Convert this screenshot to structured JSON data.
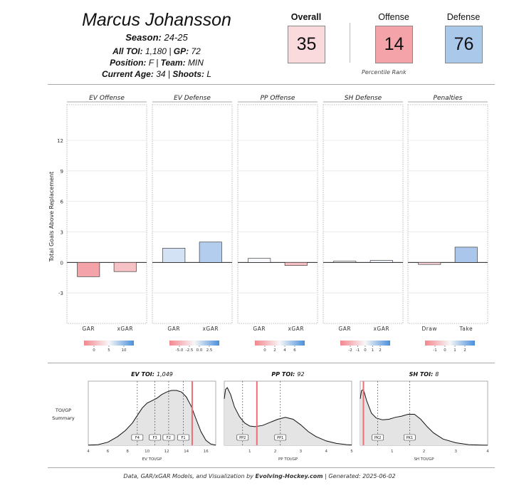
{
  "header": {
    "name": "Marcus Johansson",
    "season_label": "Season",
    "season": "24-25",
    "toi_label": "All TOI",
    "toi": "1,180",
    "gp_label": "GP",
    "gp": "72",
    "position_label": "Position",
    "position": "F",
    "team_label": "Team",
    "team": "MIN",
    "age_label": "Current Age",
    "age": "34",
    "shoots_label": "Shoots",
    "shoots": "L"
  },
  "ratings": {
    "overall_label": "Overall",
    "overall": "35",
    "offense_label": "Offense",
    "offense": "14",
    "defense_label": "Defense",
    "defense": "76",
    "percentile_label": "Percentile Rank",
    "colors": {
      "overall": "#fadadd",
      "offense": "#f4a3a8",
      "defense": "#a9c8ea"
    }
  },
  "chart_data": [
    {
      "type": "bar",
      "ylabel": "Total Goals Above Replacement",
      "ylim": [
        -6,
        15.5
      ],
      "yticks": [
        -3,
        0,
        3,
        6,
        9,
        12
      ],
      "grid": true,
      "facets": [
        {
          "title": "EV Offense",
          "categories": [
            "GAR",
            "xGAR"
          ],
          "values": [
            -1.4,
            -0.9
          ],
          "colors": [
            "#f4a3a8",
            "#f7c2c5"
          ],
          "legend": {
            "ticks": [
              "0",
              "5",
              "10"
            ]
          }
        },
        {
          "title": "EV Defense",
          "categories": [
            "GAR",
            "xGAR"
          ],
          "values": [
            1.4,
            2.0
          ],
          "colors": [
            "#d3e2f4",
            "#b3cdee"
          ],
          "legend": {
            "ticks": [
              "-5.0",
              "-2.5",
              "0.0",
              "2.5"
            ]
          }
        },
        {
          "title": "PP Offense",
          "categories": [
            "GAR",
            "xGAR"
          ],
          "values": [
            0.4,
            -0.3
          ],
          "colors": [
            "#f6f8fc",
            "#f7c2c5"
          ],
          "legend": {
            "ticks": [
              "0",
              "2",
              "4",
              "6"
            ]
          }
        },
        {
          "title": "SH Defense",
          "categories": [
            "GAR",
            "xGAR"
          ],
          "values": [
            0.12,
            0.2
          ],
          "colors": [
            "#f2f2f2",
            "#eef3fa"
          ],
          "legend": {
            "ticks": [
              "-2",
              "-1",
              "0",
              "1",
              "2"
            ]
          }
        },
        {
          "title": "Penalties",
          "categories": [
            "Draw",
            "Take"
          ],
          "values": [
            -0.2,
            1.5
          ],
          "colors": [
            "#f8d3d6",
            "#aac7eb"
          ],
          "legend": {
            "ticks": [
              "-1",
              "0",
              "1",
              "2"
            ]
          }
        }
      ]
    },
    {
      "type": "area",
      "title_label": "EV TOI",
      "title_value": "1,049",
      "xlabel": "EV TOI/GP",
      "xlim": [
        4,
        17
      ],
      "xticks": [
        4,
        6,
        8,
        10,
        12,
        14,
        16
      ],
      "x": [
        4,
        5,
        6,
        7,
        7.8,
        8.5,
        9,
        9.5,
        10,
        10.5,
        11,
        11.5,
        12,
        12.5,
        13,
        13.5,
        14,
        14.5,
        15,
        15.5,
        16,
        16.5,
        17
      ],
      "y": [
        0.002,
        0.01,
        0.05,
        0.14,
        0.24,
        0.36,
        0.48,
        0.6,
        0.68,
        0.72,
        0.76,
        0.82,
        0.86,
        0.885,
        0.885,
        0.86,
        0.78,
        0.63,
        0.42,
        0.22,
        0.08,
        0.02,
        0.004
      ],
      "percentile_lines": [
        {
          "label": "F4",
          "x": 9.0
        },
        {
          "label": "F3",
          "x": 10.8
        },
        {
          "label": "F2",
          "x": 12.2
        },
        {
          "label": "F1",
          "x": 13.7
        }
      ],
      "player_value": 14.6
    },
    {
      "type": "area",
      "title_label": "PP TOI",
      "title_value": "92",
      "xlabel": "PP TOI/GP",
      "xlim": [
        0,
        5
      ],
      "xticks": [
        1,
        2,
        3,
        4,
        5
      ],
      "x": [
        0,
        0.05,
        0.12,
        0.25,
        0.4,
        0.6,
        0.8,
        1.0,
        1.2,
        1.5,
        1.8,
        2.1,
        2.4,
        2.7,
        3.0,
        3.3,
        3.6,
        4.0,
        4.4,
        4.8,
        5.0
      ],
      "y": [
        0.75,
        0.9,
        0.93,
        0.82,
        0.62,
        0.46,
        0.36,
        0.31,
        0.3,
        0.32,
        0.37,
        0.42,
        0.45,
        0.42,
        0.33,
        0.22,
        0.14,
        0.07,
        0.03,
        0.01,
        0.005
      ],
      "percentile_lines": [
        {
          "label": "PP2",
          "x": 0.72
        },
        {
          "label": "PP1",
          "x": 2.2
        }
      ],
      "player_value": 1.28
    },
    {
      "type": "area",
      "title_label": "SH TOI",
      "title_value": "8",
      "xlabel": "SH TOI/GP",
      "xlim": [
        0,
        4
      ],
      "xticks": [
        1,
        2,
        3,
        4
      ],
      "x": [
        0,
        0.04,
        0.1,
        0.2,
        0.35,
        0.5,
        0.7,
        0.9,
        1.1,
        1.3,
        1.5,
        1.7,
        1.9,
        2.1,
        2.3,
        2.6,
        3.0,
        3.4,
        3.8,
        4.0
      ],
      "y": [
        0.75,
        0.88,
        0.9,
        0.72,
        0.52,
        0.44,
        0.41,
        0.42,
        0.45,
        0.47,
        0.5,
        0.5,
        0.42,
        0.3,
        0.2,
        0.1,
        0.04,
        0.01,
        0.003,
        0.001
      ],
      "percentile_lines": [
        {
          "label": "PK2",
          "x": 0.55
        },
        {
          "label": "PK1",
          "x": 1.55
        }
      ],
      "player_value": 0.1
    }
  ],
  "summary_label": [
    "TOI/GP",
    "Summary"
  ],
  "footer": {
    "prefix": "Data, GAR/xGAR Models, and Visualization by ",
    "site": "Evolving-Hockey.com",
    "suffix": " | Generated: 2025-06-02"
  }
}
